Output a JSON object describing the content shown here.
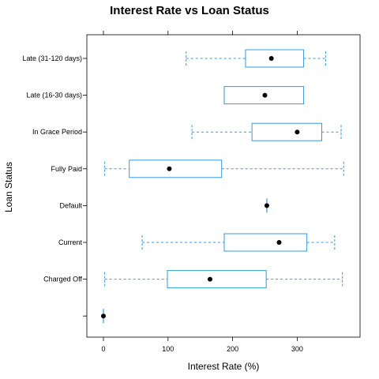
{
  "chart_data": {
    "type": "boxplot",
    "title": "Interest Rate vs Loan Status",
    "xlabel": "Interest Rate (%)",
    "ylabel": "Loan Status",
    "xlim": [
      -25,
      400
    ],
    "x_ticks": [
      0,
      100,
      200,
      300
    ],
    "orientation": "horizontal",
    "box_color": "#3399dd",
    "median_color": "#000000",
    "categories": [
      "Late (31-120 days)",
      "Late (16-30 days)",
      "In Grace Period",
      "Fully Paid",
      "Default",
      "Current",
      "Charged Off",
      ""
    ],
    "boxes": [
      {
        "category": "Late (31-120 days)",
        "min": 128,
        "q1": 220,
        "median": 260,
        "q3": 310,
        "max": 344
      },
      {
        "category": "Late (16-30 days)",
        "min": 187,
        "q1": 187,
        "median": 250,
        "q3": 310,
        "max": 310
      },
      {
        "category": "In Grace Period",
        "min": 137,
        "q1": 230,
        "median": 300,
        "q3": 338,
        "max": 368
      },
      {
        "category": "Fully Paid",
        "min": 2,
        "q1": 40,
        "median": 102,
        "q3": 183,
        "max": 372
      },
      {
        "category": "Default",
        "min": 253,
        "q1": 253,
        "median": 253,
        "q3": 253,
        "max": 253
      },
      {
        "category": "Current",
        "min": 60,
        "q1": 187,
        "median": 272,
        "q3": 315,
        "max": 358
      },
      {
        "category": "Charged Off",
        "min": 2,
        "q1": 99,
        "median": 165,
        "q3": 252,
        "max": 370
      },
      {
        "category": "",
        "min": 0,
        "q1": 0,
        "median": 0,
        "q3": 0,
        "max": 0
      }
    ]
  }
}
